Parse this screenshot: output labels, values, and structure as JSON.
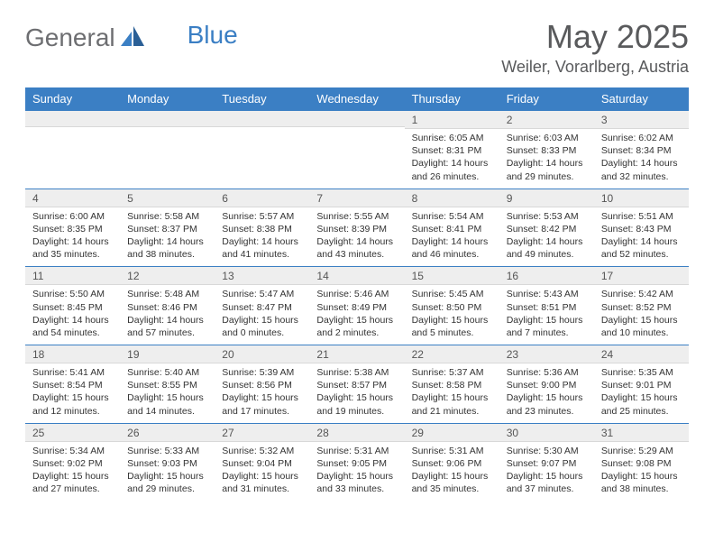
{
  "brand": {
    "part1": "General",
    "part2": "Blue"
  },
  "title": "May 2025",
  "location": "Weiler, Vorarlberg, Austria",
  "colors": {
    "accent": "#3b7fc4",
    "band": "#eeeeee",
    "text": "#333333",
    "header_text": "#595a5c"
  },
  "days_of_week": [
    "Sunday",
    "Monday",
    "Tuesday",
    "Wednesday",
    "Thursday",
    "Friday",
    "Saturday"
  ],
  "weeks": [
    [
      null,
      null,
      null,
      null,
      {
        "n": "1",
        "l1": "Sunrise: 6:05 AM",
        "l2": "Sunset: 8:31 PM",
        "l3": "Daylight: 14 hours",
        "l4": "and 26 minutes."
      },
      {
        "n": "2",
        "l1": "Sunrise: 6:03 AM",
        "l2": "Sunset: 8:33 PM",
        "l3": "Daylight: 14 hours",
        "l4": "and 29 minutes."
      },
      {
        "n": "3",
        "l1": "Sunrise: 6:02 AM",
        "l2": "Sunset: 8:34 PM",
        "l3": "Daylight: 14 hours",
        "l4": "and 32 minutes."
      }
    ],
    [
      {
        "n": "4",
        "l1": "Sunrise: 6:00 AM",
        "l2": "Sunset: 8:35 PM",
        "l3": "Daylight: 14 hours",
        "l4": "and 35 minutes."
      },
      {
        "n": "5",
        "l1": "Sunrise: 5:58 AM",
        "l2": "Sunset: 8:37 PM",
        "l3": "Daylight: 14 hours",
        "l4": "and 38 minutes."
      },
      {
        "n": "6",
        "l1": "Sunrise: 5:57 AM",
        "l2": "Sunset: 8:38 PM",
        "l3": "Daylight: 14 hours",
        "l4": "and 41 minutes."
      },
      {
        "n": "7",
        "l1": "Sunrise: 5:55 AM",
        "l2": "Sunset: 8:39 PM",
        "l3": "Daylight: 14 hours",
        "l4": "and 43 minutes."
      },
      {
        "n": "8",
        "l1": "Sunrise: 5:54 AM",
        "l2": "Sunset: 8:41 PM",
        "l3": "Daylight: 14 hours",
        "l4": "and 46 minutes."
      },
      {
        "n": "9",
        "l1": "Sunrise: 5:53 AM",
        "l2": "Sunset: 8:42 PM",
        "l3": "Daylight: 14 hours",
        "l4": "and 49 minutes."
      },
      {
        "n": "10",
        "l1": "Sunrise: 5:51 AM",
        "l2": "Sunset: 8:43 PM",
        "l3": "Daylight: 14 hours",
        "l4": "and 52 minutes."
      }
    ],
    [
      {
        "n": "11",
        "l1": "Sunrise: 5:50 AM",
        "l2": "Sunset: 8:45 PM",
        "l3": "Daylight: 14 hours",
        "l4": "and 54 minutes."
      },
      {
        "n": "12",
        "l1": "Sunrise: 5:48 AM",
        "l2": "Sunset: 8:46 PM",
        "l3": "Daylight: 14 hours",
        "l4": "and 57 minutes."
      },
      {
        "n": "13",
        "l1": "Sunrise: 5:47 AM",
        "l2": "Sunset: 8:47 PM",
        "l3": "Daylight: 15 hours",
        "l4": "and 0 minutes."
      },
      {
        "n": "14",
        "l1": "Sunrise: 5:46 AM",
        "l2": "Sunset: 8:49 PM",
        "l3": "Daylight: 15 hours",
        "l4": "and 2 minutes."
      },
      {
        "n": "15",
        "l1": "Sunrise: 5:45 AM",
        "l2": "Sunset: 8:50 PM",
        "l3": "Daylight: 15 hours",
        "l4": "and 5 minutes."
      },
      {
        "n": "16",
        "l1": "Sunrise: 5:43 AM",
        "l2": "Sunset: 8:51 PM",
        "l3": "Daylight: 15 hours",
        "l4": "and 7 minutes."
      },
      {
        "n": "17",
        "l1": "Sunrise: 5:42 AM",
        "l2": "Sunset: 8:52 PM",
        "l3": "Daylight: 15 hours",
        "l4": "and 10 minutes."
      }
    ],
    [
      {
        "n": "18",
        "l1": "Sunrise: 5:41 AM",
        "l2": "Sunset: 8:54 PM",
        "l3": "Daylight: 15 hours",
        "l4": "and 12 minutes."
      },
      {
        "n": "19",
        "l1": "Sunrise: 5:40 AM",
        "l2": "Sunset: 8:55 PM",
        "l3": "Daylight: 15 hours",
        "l4": "and 14 minutes."
      },
      {
        "n": "20",
        "l1": "Sunrise: 5:39 AM",
        "l2": "Sunset: 8:56 PM",
        "l3": "Daylight: 15 hours",
        "l4": "and 17 minutes."
      },
      {
        "n": "21",
        "l1": "Sunrise: 5:38 AM",
        "l2": "Sunset: 8:57 PM",
        "l3": "Daylight: 15 hours",
        "l4": "and 19 minutes."
      },
      {
        "n": "22",
        "l1": "Sunrise: 5:37 AM",
        "l2": "Sunset: 8:58 PM",
        "l3": "Daylight: 15 hours",
        "l4": "and 21 minutes."
      },
      {
        "n": "23",
        "l1": "Sunrise: 5:36 AM",
        "l2": "Sunset: 9:00 PM",
        "l3": "Daylight: 15 hours",
        "l4": "and 23 minutes."
      },
      {
        "n": "24",
        "l1": "Sunrise: 5:35 AM",
        "l2": "Sunset: 9:01 PM",
        "l3": "Daylight: 15 hours",
        "l4": "and 25 minutes."
      }
    ],
    [
      {
        "n": "25",
        "l1": "Sunrise: 5:34 AM",
        "l2": "Sunset: 9:02 PM",
        "l3": "Daylight: 15 hours",
        "l4": "and 27 minutes."
      },
      {
        "n": "26",
        "l1": "Sunrise: 5:33 AM",
        "l2": "Sunset: 9:03 PM",
        "l3": "Daylight: 15 hours",
        "l4": "and 29 minutes."
      },
      {
        "n": "27",
        "l1": "Sunrise: 5:32 AM",
        "l2": "Sunset: 9:04 PM",
        "l3": "Daylight: 15 hours",
        "l4": "and 31 minutes."
      },
      {
        "n": "28",
        "l1": "Sunrise: 5:31 AM",
        "l2": "Sunset: 9:05 PM",
        "l3": "Daylight: 15 hours",
        "l4": "and 33 minutes."
      },
      {
        "n": "29",
        "l1": "Sunrise: 5:31 AM",
        "l2": "Sunset: 9:06 PM",
        "l3": "Daylight: 15 hours",
        "l4": "and 35 minutes."
      },
      {
        "n": "30",
        "l1": "Sunrise: 5:30 AM",
        "l2": "Sunset: 9:07 PM",
        "l3": "Daylight: 15 hours",
        "l4": "and 37 minutes."
      },
      {
        "n": "31",
        "l1": "Sunrise: 5:29 AM",
        "l2": "Sunset: 9:08 PM",
        "l3": "Daylight: 15 hours",
        "l4": "and 38 minutes."
      }
    ]
  ]
}
